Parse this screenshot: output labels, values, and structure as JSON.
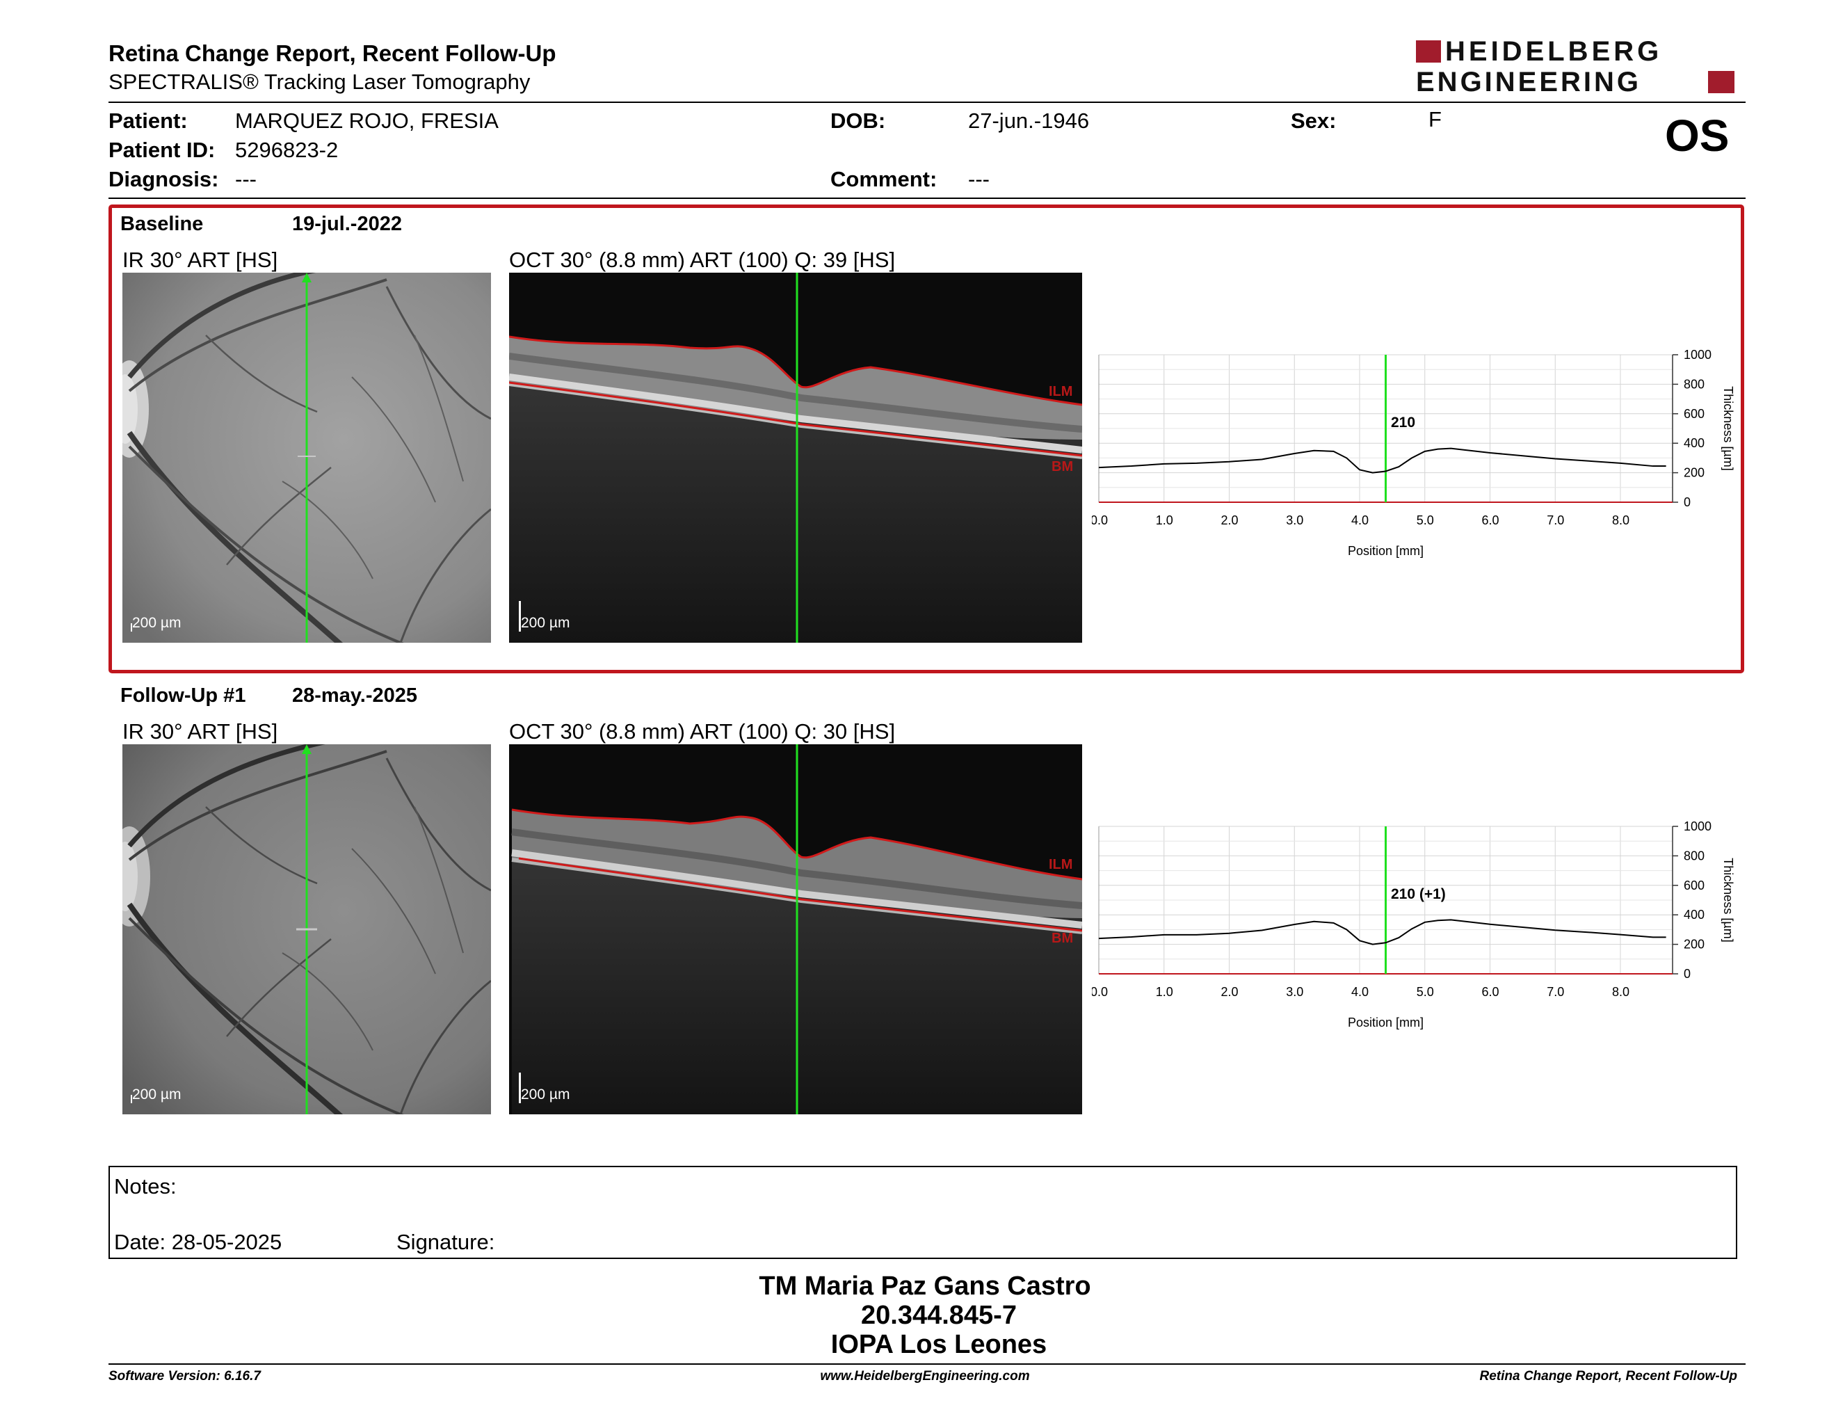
{
  "header": {
    "title": "Retina Change Report, Recent Follow-Up",
    "subtitle": "SPECTRALIS® Tracking Laser Tomography",
    "logo_line1": "HEIDELBERG",
    "logo_line2": "ENGINEERING",
    "eye": "OS"
  },
  "patient": {
    "patient_label": "Patient:",
    "patient_value": "MARQUEZ ROJO, FRESIA",
    "id_label": "Patient ID:",
    "id_value": "5296823-2",
    "diagnosis_label": "Diagnosis:",
    "diagnosis_value": "---",
    "dob_label": "DOB:",
    "dob_value": "27-jun.-1946",
    "comment_label": "Comment:",
    "comment_value": "---",
    "sex_label": "Sex:",
    "sex_value": "F"
  },
  "baseline": {
    "label": "Baseline",
    "date": "19-jul.-2022",
    "ir_title": "IR 30° ART [HS]",
    "oct_title": "OCT 30° (8.8 mm) ART (100) Q: 39 [HS]",
    "scale": "200 µm",
    "ilm": "ILM",
    "bm": "BM",
    "chart_value_label": "210"
  },
  "followup": {
    "label": "Follow-Up #1",
    "date": "28-may.-2025",
    "ir_title": "IR 30° ART [HS]",
    "oct_title": "OCT 30° (8.8 mm) ART (100) Q: 30 [HS]",
    "scale": "200 µm",
    "ilm": "ILM",
    "bm": "BM",
    "chart_value_label": "210 (+1)"
  },
  "chart_data": [
    {
      "type": "line",
      "xlabel": "Position [mm]",
      "ylabel": "Thickness [µm]",
      "xlim": [
        0,
        8.8
      ],
      "ylim": [
        0,
        1000
      ],
      "xticks": [
        "0.0",
        "1.0",
        "2.0",
        "3.0",
        "4.0",
        "5.0",
        "6.0",
        "7.0",
        "8.0"
      ],
      "yticks": [
        "0",
        "200",
        "400",
        "600",
        "800",
        "1000"
      ],
      "cursor_x": 4.4,
      "x": [
        0,
        0.5,
        1,
        1.5,
        2,
        2.5,
        3,
        3.3,
        3.6,
        3.8,
        4.0,
        4.2,
        4.4,
        4.6,
        4.8,
        5.0,
        5.2,
        5.4,
        5.6,
        6.0,
        6.5,
        7.0,
        7.5,
        8.0,
        8.5,
        8.7
      ],
      "values": [
        235,
        245,
        260,
        265,
        275,
        290,
        330,
        350,
        345,
        300,
        220,
        200,
        210,
        240,
        300,
        345,
        360,
        365,
        355,
        335,
        315,
        295,
        280,
        265,
        245,
        245
      ]
    },
    {
      "type": "line",
      "xlabel": "Position [mm]",
      "ylabel": "Thickness [µm]",
      "xlim": [
        0,
        8.8
      ],
      "ylim": [
        0,
        1000
      ],
      "xticks": [
        "0.0",
        "1.0",
        "2.0",
        "3.0",
        "4.0",
        "5.0",
        "6.0",
        "7.0",
        "8.0"
      ],
      "yticks": [
        "0",
        "200",
        "400",
        "600",
        "800",
        "1000"
      ],
      "cursor_x": 4.4,
      "x": [
        0,
        0.5,
        1,
        1.5,
        2,
        2.5,
        3,
        3.3,
        3.6,
        3.8,
        4.0,
        4.2,
        4.4,
        4.6,
        4.8,
        5.0,
        5.2,
        5.4,
        5.6,
        6.0,
        6.5,
        7.0,
        7.5,
        8.0,
        8.5,
        8.7
      ],
      "values": [
        240,
        250,
        265,
        265,
        275,
        295,
        335,
        355,
        345,
        300,
        225,
        200,
        211,
        245,
        305,
        350,
        362,
        366,
        356,
        336,
        316,
        296,
        282,
        266,
        248,
        248
      ]
    }
  ],
  "notes": {
    "notes_label": "Notes:",
    "date_label": "Date: 28-05-2025",
    "signature_label": "Signature:"
  },
  "signature_block": {
    "name": "TM Maria Paz Gans Castro",
    "rut": "20.344.845-7",
    "institution": "IOPA Los Leones"
  },
  "footer": {
    "software": "Software Version: 6.16.7",
    "website": "www.HeidelbergEngineering.com",
    "report": "Retina Change Report, Recent Follow-Up"
  },
  "colors": {
    "accent_red": "#c0161d",
    "layer_red": "#d01a1a",
    "cursor_green": "#20e020"
  }
}
